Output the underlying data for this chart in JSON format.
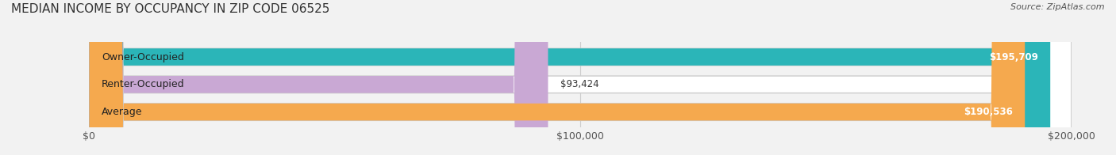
{
  "title": "MEDIAN INCOME BY OCCUPANCY IN ZIP CODE 06525",
  "source": "Source: ZipAtlas.com",
  "categories": [
    "Owner-Occupied",
    "Renter-Occupied",
    "Average"
  ],
  "values": [
    195709,
    93424,
    190536
  ],
  "bar_colors": [
    "#2bb5b8",
    "#c9a8d4",
    "#f5a94e"
  ],
  "value_labels": [
    "$195,709",
    "$93,424",
    "$190,536"
  ],
  "xlim": [
    0,
    200000
  ],
  "xticks": [
    0,
    100000,
    200000
  ],
  "xtick_labels": [
    "$0",
    "$100,000",
    "$200,000"
  ],
  "background_color": "#f2f2f2",
  "bar_bg_color": "#ffffff",
  "title_fontsize": 11,
  "label_fontsize": 9,
  "value_fontsize": 8.5,
  "source_fontsize": 8
}
